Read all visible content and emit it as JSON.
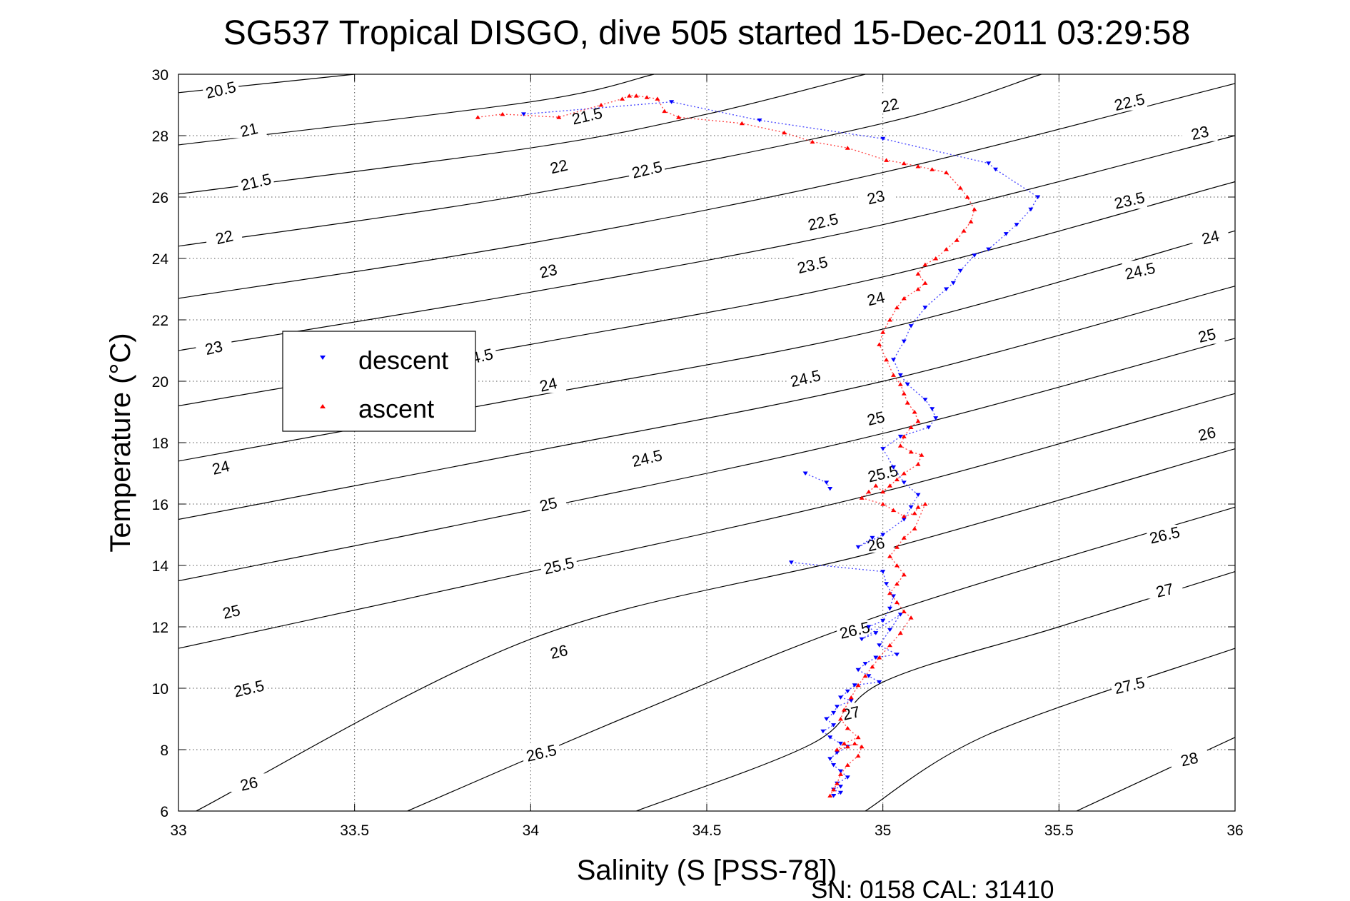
{
  "chart_data": {
    "type": "scatter",
    "title": "SG537 Tropical DISGO, dive 505 started 15-Dec-2011 03:29:58",
    "xlabel": "Salinity (S [PSS-78])",
    "ylabel": "Temperature (°C)",
    "xlim": [
      33,
      36
    ],
    "ylim": [
      6,
      30
    ],
    "x_ticks": [
      33,
      33.5,
      34,
      34.5,
      35,
      35.5,
      36
    ],
    "x_tick_labels": [
      "33",
      "33.5",
      "34",
      "34.5",
      "35",
      "35.5",
      "36"
    ],
    "y_ticks": [
      6,
      8,
      10,
      12,
      14,
      16,
      18,
      20,
      22,
      24,
      26,
      28,
      30
    ],
    "y_tick_labels": [
      "6",
      "8",
      "10",
      "12",
      "14",
      "16",
      "18",
      "20",
      "22",
      "24",
      "26",
      "28",
      "30"
    ],
    "grid": true,
    "legend_position": "upper-left",
    "footer_text": "SN: 0158  CAL: 31410",
    "colors": {
      "descent": "#0000ff",
      "ascent": "#ff0000",
      "contour": "#000000"
    },
    "density_contours": [
      {
        "label": "20.5",
        "points": [
          [
            33,
            29.4
          ],
          [
            33.5,
            30.0
          ]
        ],
        "label_positions": [
          [
            33.12,
            29.5
          ]
        ]
      },
      {
        "label": "21",
        "points": [
          [
            33,
            27.7
          ],
          [
            34.0,
            29.1
          ],
          [
            34.35,
            30.0
          ]
        ],
        "label_positions": [
          [
            33.2,
            28.2
          ]
        ]
      },
      {
        "label": "21.5",
        "points": [
          [
            33,
            26.1
          ],
          [
            34.0,
            27.6
          ],
          [
            34.5,
            28.7
          ],
          [
            34.95,
            30.0
          ]
        ],
        "label_positions": [
          [
            33.22,
            26.5
          ],
          [
            34.16,
            28.65
          ]
        ]
      },
      {
        "label": "22",
        "points": [
          [
            33,
            24.4
          ],
          [
            34.0,
            26.1
          ],
          [
            35.0,
            28.4
          ],
          [
            35.45,
            30.0
          ]
        ],
        "label_positions": [
          [
            33.13,
            24.7
          ],
          [
            34.08,
            27.0
          ],
          [
            35.02,
            29.0
          ]
        ]
      },
      {
        "label": "22.5",
        "points": [
          [
            33,
            22.7
          ],
          [
            34.0,
            24.5
          ],
          [
            35.0,
            26.8
          ],
          [
            36.0,
            29.7
          ]
        ],
        "label_positions": [
          [
            34.83,
            25.2
          ],
          [
            34.33,
            26.9
          ],
          [
            35.7,
            29.1
          ]
        ]
      },
      {
        "label": "23",
        "points": [
          [
            33,
            21.0
          ],
          [
            34.0,
            22.9
          ],
          [
            35.0,
            25.1
          ],
          [
            36.0,
            28.0
          ]
        ],
        "label_positions": [
          [
            33.1,
            21.1
          ],
          [
            34.05,
            23.6
          ],
          [
            34.98,
            26.0
          ],
          [
            35.9,
            28.1
          ]
        ]
      },
      {
        "label": "23.5",
        "points": [
          [
            33,
            19.2
          ],
          [
            34.0,
            21.2
          ],
          [
            35.0,
            23.4
          ],
          [
            36.0,
            26.5
          ]
        ],
        "label_positions": [
          [
            34.8,
            23.8
          ],
          [
            35.7,
            25.9
          ]
        ]
      },
      {
        "label": "24",
        "points": [
          [
            33,
            17.4
          ],
          [
            34.0,
            19.5
          ],
          [
            35.0,
            21.7
          ],
          [
            36.0,
            24.9
          ]
        ],
        "label_positions": [
          [
            33.12,
            17.2
          ],
          [
            34.05,
            19.9
          ],
          [
            34.98,
            22.7
          ],
          [
            35.93,
            24.7
          ]
        ]
      },
      {
        "label": "24.5",
        "points": [
          [
            33,
            15.5
          ],
          [
            34.0,
            17.7
          ],
          [
            35.0,
            20.0
          ],
          [
            36.0,
            23.1
          ]
        ],
        "label_positions": [
          [
            33.85,
            20.8
          ],
          [
            34.33,
            17.5
          ],
          [
            34.78,
            20.1
          ],
          [
            35.73,
            23.6
          ]
        ]
      },
      {
        "label": "25",
        "points": [
          [
            33,
            13.5
          ],
          [
            34.0,
            15.8
          ],
          [
            35.0,
            18.3
          ],
          [
            36.0,
            21.4
          ]
        ],
        "label_positions": [
          [
            33.15,
            12.5
          ],
          [
            34.05,
            16.0
          ],
          [
            34.98,
            18.8
          ],
          [
            35.92,
            21.5
          ]
        ]
      },
      {
        "label": "25.5",
        "points": [
          [
            33,
            11.3
          ],
          [
            34.0,
            13.8
          ],
          [
            35.0,
            16.4
          ],
          [
            36.0,
            19.6
          ]
        ],
        "label_positions": [
          [
            33.2,
            10.0
          ],
          [
            34.08,
            14.0
          ],
          [
            35.0,
            17.0
          ]
        ]
      },
      {
        "label": "26",
        "points": [
          [
            33.05,
            6.0
          ],
          [
            34.0,
            11.6
          ],
          [
            35.0,
            14.5
          ],
          [
            36.0,
            17.8
          ]
        ],
        "label_positions": [
          [
            33.2,
            6.9
          ],
          [
            34.08,
            11.2
          ],
          [
            34.98,
            14.7
          ],
          [
            35.92,
            18.3
          ]
        ]
      },
      {
        "label": "26.5",
        "points": [
          [
            33.65,
            6.0
          ],
          [
            34.3,
            9.2
          ],
          [
            35.0,
            12.4
          ],
          [
            36.0,
            15.9
          ]
        ],
        "label_positions": [
          [
            34.03,
            7.9
          ],
          [
            34.92,
            11.9
          ],
          [
            35.8,
            15.0
          ]
        ]
      },
      {
        "label": "27",
        "points": [
          [
            34.3,
            6.0
          ],
          [
            34.8,
            8.2
          ],
          [
            35.0,
            10.2
          ],
          [
            35.5,
            12.0
          ],
          [
            36.0,
            13.8
          ]
        ],
        "label_positions": [
          [
            34.91,
            9.2
          ],
          [
            35.8,
            13.2
          ]
        ]
      },
      {
        "label": "27.5",
        "points": [
          [
            34.95,
            6.0
          ],
          [
            35.3,
            8.5
          ],
          [
            36.0,
            11.3
          ]
        ],
        "label_positions": [
          [
            35.7,
            10.1
          ]
        ]
      },
      {
        "label": "28",
        "points": [
          [
            35.55,
            6.0
          ],
          [
            36.0,
            8.4
          ]
        ],
        "label_positions": [
          [
            35.87,
            7.7
          ]
        ]
      }
    ],
    "series": [
      {
        "name": "descent",
        "marker": "v",
        "x": [
          33.98,
          34.4,
          34.65,
          35.0,
          35.3,
          35.32,
          35.44,
          35.42,
          35.38,
          35.35,
          35.3,
          35.26,
          35.22,
          35.2,
          35.18,
          35.12,
          35.08,
          35.06,
          35.03,
          35.05,
          35.07,
          35.12,
          35.14,
          35.15,
          35.13,
          35.05,
          35.0,
          35.03,
          35.06,
          35.1,
          35.08,
          35.06,
          35.0,
          34.93,
          34.97,
          34.85,
          34.84,
          34.78,
          34.74,
          35.0,
          35.01,
          35.03,
          35.02,
          35.0,
          34.96,
          34.98,
          34.94,
          35.05,
          35.02,
          34.99,
          35.04,
          34.98,
          34.95,
          34.93,
          34.96,
          34.99,
          34.92,
          34.9,
          34.88,
          34.91,
          34.87,
          34.86,
          34.84,
          34.86,
          34.83,
          34.85,
          34.88,
          34.9,
          34.87,
          34.85,
          34.86,
          34.88,
          34.9,
          34.87,
          34.88,
          34.86,
          34.88,
          34.86
        ],
        "y": [
          28.7,
          29.1,
          28.5,
          27.9,
          27.1,
          26.9,
          26.0,
          25.6,
          25.1,
          24.8,
          24.3,
          24.1,
          23.6,
          23.2,
          23.0,
          22.4,
          21.8,
          21.3,
          20.7,
          20.2,
          19.9,
          19.4,
          19.1,
          18.8,
          18.5,
          18.2,
          17.8,
          17.2,
          16.7,
          16.3,
          15.9,
          15.5,
          15.0,
          14.6,
          14.9,
          16.5,
          16.7,
          17.0,
          14.1,
          13.8,
          13.4,
          13.0,
          12.6,
          12.2,
          12.0,
          11.8,
          11.6,
          12.4,
          11.9,
          11.4,
          11.1,
          11.0,
          10.8,
          10.6,
          10.4,
          10.2,
          10.1,
          9.9,
          9.7,
          9.6,
          9.4,
          9.2,
          9.0,
          8.8,
          8.6,
          8.4,
          8.2,
          8.1,
          7.9,
          7.7,
          7.5,
          7.3,
          7.1,
          6.9,
          6.8,
          6.7,
          6.6,
          6.5
        ]
      },
      {
        "name": "ascent",
        "marker": "^",
        "x": [
          33.85,
          33.92,
          34.08,
          34.2,
          34.26,
          34.28,
          34.3,
          34.33,
          34.36,
          34.38,
          34.42,
          34.6,
          34.72,
          34.8,
          34.9,
          35.01,
          35.06,
          35.1,
          35.14,
          35.18,
          35.22,
          35.24,
          35.26,
          35.25,
          35.23,
          35.21,
          35.18,
          35.15,
          35.12,
          35.1,
          35.12,
          35.1,
          35.06,
          35.04,
          35.02,
          35.0,
          34.99,
          35.01,
          35.03,
          35.05,
          35.06,
          35.07,
          35.09,
          35.1,
          35.08,
          35.06,
          35.05,
          35.08,
          35.11,
          35.1,
          35.06,
          35.04,
          35.02,
          35.0,
          34.98,
          34.96,
          34.94,
          35.0,
          35.03,
          35.06,
          35.09,
          35.1,
          35.12,
          35.09,
          35.06,
          35.04,
          35.02,
          35.04,
          35.06,
          35.04,
          35.02,
          35.04,
          35.06,
          35.08,
          35.05,
          35.02,
          34.99,
          34.97,
          34.95,
          34.93,
          34.91,
          34.89,
          34.88,
          34.9,
          34.93,
          34.89,
          34.87,
          34.9,
          34.92,
          34.94,
          34.93,
          34.9,
          34.88,
          34.87,
          34.86,
          34.85
        ],
        "y": [
          28.6,
          28.7,
          28.6,
          29.0,
          29.2,
          29.3,
          29.3,
          29.25,
          29.2,
          28.8,
          28.6,
          28.4,
          28.1,
          27.8,
          27.6,
          27.2,
          27.1,
          27.0,
          26.9,
          26.8,
          26.3,
          26.0,
          25.6,
          25.2,
          24.9,
          24.6,
          24.3,
          24.0,
          23.8,
          23.5,
          23.2,
          23.0,
          22.7,
          22.4,
          22.0,
          21.6,
          21.2,
          20.7,
          20.2,
          19.9,
          19.6,
          19.3,
          19.0,
          18.7,
          18.5,
          18.2,
          17.9,
          17.7,
          17.6,
          17.3,
          17.0,
          16.8,
          16.6,
          16.4,
          16.6,
          16.4,
          16.2,
          16.0,
          15.8,
          15.6,
          15.7,
          15.9,
          16.0,
          15.2,
          14.9,
          14.6,
          14.3,
          14.0,
          13.7,
          13.4,
          13.1,
          12.8,
          12.5,
          12.3,
          11.8,
          11.4,
          11.0,
          10.7,
          10.4,
          10.1,
          9.7,
          9.3,
          9.0,
          8.7,
          8.4,
          8.2,
          8.0,
          8.1,
          8.2,
          8.1,
          7.8,
          7.5,
          7.2,
          6.9,
          6.7,
          6.5
        ]
      }
    ]
  }
}
